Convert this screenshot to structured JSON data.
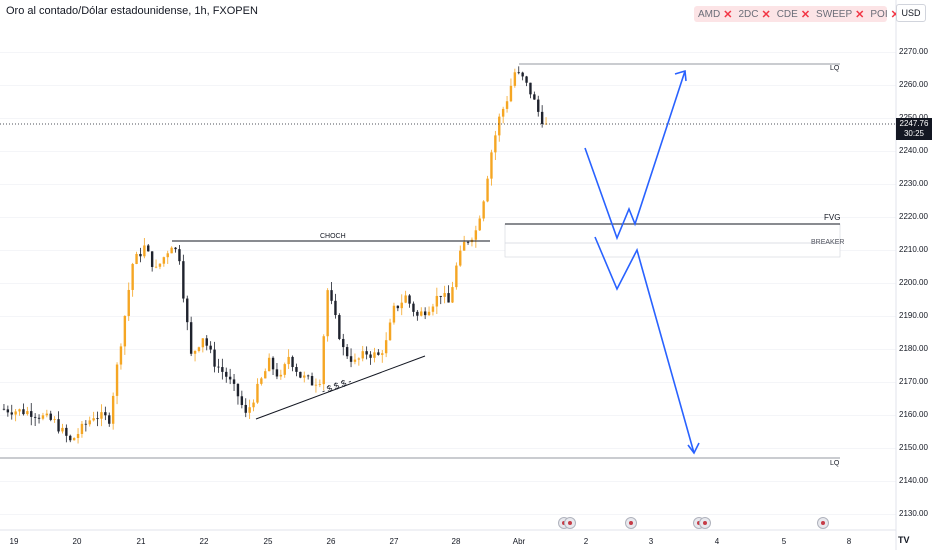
{
  "header": {
    "title": "Oro al contado/Dólar estadounidense, 1h, FXOPEN",
    "currency": "USD",
    "tags": [
      "AMD",
      "2DC",
      "CDE",
      "SWEEP",
      "POI"
    ]
  },
  "last_price": {
    "price": "2247.76",
    "countdown": "30:25"
  },
  "colors": {
    "up": "#f5a623",
    "down": "#1e222d",
    "projection": "#2962ff",
    "tag_bg": "#fce4e6",
    "tag_x": "#f23645"
  },
  "chart_data": {
    "type": "candlestick",
    "title": "Oro al contado/Dólar estadounidense, 1h, FXOPEN",
    "yticks": [
      2130,
      2140,
      2150,
      2160,
      2170,
      2180,
      2190,
      2200,
      2210,
      2220,
      2230,
      2240,
      2250,
      2260,
      2270
    ],
    "ytick_labels": [
      "2130.00",
      "2140.00",
      "2150.00",
      "2160.00",
      "2170.00",
      "2180.00",
      "2190.00",
      "2200.00",
      "2210.00",
      "2220.00",
      "2230.00",
      "2240.00",
      "2250.00",
      "2260.00",
      "2270.00"
    ],
    "ylim": [
      2124,
      2284
    ],
    "xticks": [
      "19",
      "20",
      "21",
      "22",
      "25",
      "26",
      "27",
      "28",
      "Abr",
      "2",
      "3",
      "4",
      "5",
      "8"
    ],
    "current_price": 2247.76,
    "price_path": [
      [
        0,
        2162
      ],
      [
        8,
        2161
      ],
      [
        14,
        2158
      ],
      [
        18,
        2152
      ],
      [
        24,
        2160
      ],
      [
        28,
        2159
      ],
      [
        34,
        2206
      ],
      [
        37,
        2211
      ],
      [
        40,
        2204
      ],
      [
        44,
        2212
      ],
      [
        46,
        2208
      ],
      [
        47,
        2197
      ],
      [
        49,
        2178
      ],
      [
        52,
        2184
      ],
      [
        55,
        2176
      ],
      [
        58,
        2172
      ],
      [
        61,
        2166
      ],
      [
        63,
        2160
      ],
      [
        66,
        2168
      ],
      [
        69,
        2176
      ],
      [
        72,
        2171
      ],
      [
        74,
        2178
      ],
      [
        77,
        2172
      ],
      [
        80,
        2170
      ],
      [
        82,
        2171
      ],
      [
        84,
        2198
      ],
      [
        86,
        2189
      ],
      [
        88,
        2180
      ],
      [
        91,
        2176
      ],
      [
        94,
        2179
      ],
      [
        97,
        2178
      ],
      [
        99,
        2182
      ],
      [
        101,
        2192
      ],
      [
        104,
        2196
      ],
      [
        107,
        2190
      ],
      [
        110,
        2193
      ],
      [
        113,
        2197
      ],
      [
        115,
        2194
      ],
      [
        117,
        2205
      ],
      [
        119,
        2212
      ],
      [
        122,
        2216
      ],
      [
        124,
        2226
      ],
      [
        126,
        2240
      ],
      [
        128,
        2250
      ],
      [
        130,
        2256
      ],
      [
        132,
        2264
      ],
      [
        134,
        2262
      ],
      [
        136,
        2258
      ],
      [
        138,
        2252
      ],
      [
        140,
        2247.76
      ]
    ],
    "levels": [
      {
        "label": "LQ",
        "price": 2266.5
      },
      {
        "label": "FVG",
        "price": 2216.5
      },
      {
        "label": "BREAKER",
        "price": 2211
      },
      {
        "label": "CHOCH",
        "price": 2212
      },
      {
        "label": "LQ",
        "price": 2145.5
      }
    ],
    "annotations": [
      "CHOCH",
      "- $ $ $ -",
      "FVG",
      "BREAKER",
      "LQ",
      "LQ"
    ],
    "scenario_up": [
      [
        2241,
        2213,
        2220,
        2215,
        2264.5
      ]
    ],
    "scenario_down": [
      [
        2211,
        2197,
        2209,
        2202,
        2146.5
      ]
    ]
  }
}
